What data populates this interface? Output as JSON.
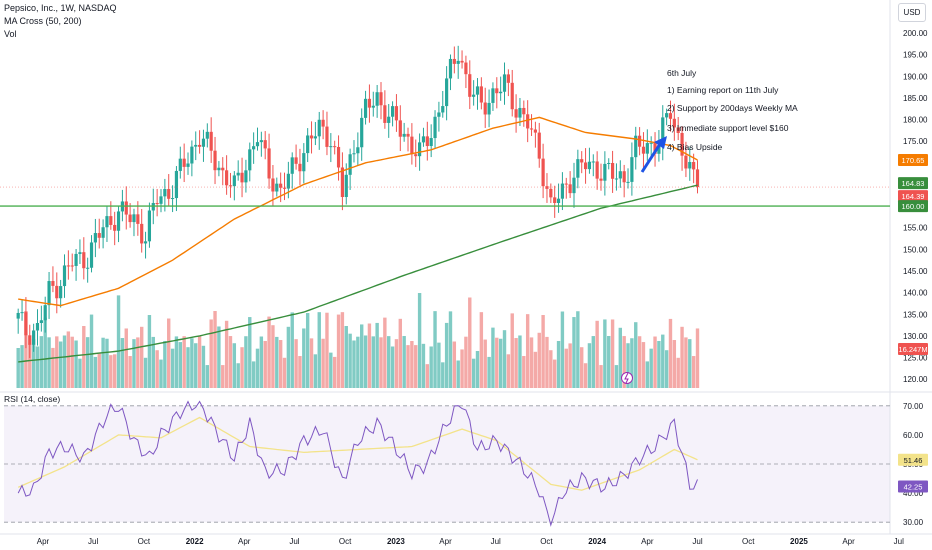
{
  "header": {
    "title": "Pepsico, Inc., 1W, NASDAQ",
    "indicator1": "MA Cross (50, 200)",
    "indicator2": "Vol",
    "currency": "USD"
  },
  "annotations": [
    "6th July",
    "1) Earning report on 11th July",
    "2) Support by 200days Weekly MA",
    "3) Immediate support level $160",
    "4) Bias Upside"
  ],
  "rsi_title": "RSI (14, close)",
  "colors": {
    "up": "#26a69a",
    "down": "#ef5350",
    "ma50": "#f57c00",
    "ma200": "#388e3c",
    "support": "#4caf50",
    "rsi": "#7e57c2",
    "rsi_ma": "#f3e38a",
    "arrow": "#1e53e5"
  },
  "chart_data": [
    {
      "type": "candlestick",
      "title": "Pepsico, Inc., 1W, NASDAQ",
      "x_ticks": [
        "Apr",
        "Jul",
        "Oct",
        "2022",
        "Apr",
        "Jul",
        "Oct",
        "2023",
        "Apr",
        "Jul",
        "Oct",
        "2024",
        "Apr",
        "Jul",
        "Oct",
        "2025",
        "Apr",
        "Jul",
        "Oct"
      ],
      "y_ticks": [
        120,
        125,
        130,
        135,
        140,
        145,
        150,
        155,
        160,
        165,
        170,
        175,
        180,
        185,
        190,
        195,
        200
      ],
      "ylim": [
        117.5,
        203
      ],
      "close_trend": [
        [
          "2021-02-15",
          134
        ],
        [
          "2021-03-01",
          131
        ],
        [
          "2021-03-22",
          131.5
        ],
        [
          "2021-04-12",
          140
        ],
        [
          "2021-05-03",
          143
        ],
        [
          "2021-05-24",
          147
        ],
        [
          "2021-06-21",
          148.5
        ],
        [
          "2021-07-19",
          155
        ],
        [
          "2021-08-16",
          158.5
        ],
        [
          "2021-09-13",
          157
        ],
        [
          "2021-10-04",
          153
        ],
        [
          "2021-10-25",
          162
        ],
        [
          "2021-11-22",
          164
        ],
        [
          "2021-12-13",
          170
        ],
        [
          "2022-01-10",
          176
        ],
        [
          "2022-01-31",
          172.5
        ],
        [
          "2022-02-21",
          167.5
        ],
        [
          "2022-03-14",
          164
        ],
        [
          "2022-04-04",
          170
        ],
        [
          "2022-04-25",
          176
        ],
        [
          "2022-05-16",
          168
        ],
        [
          "2022-06-06",
          163
        ],
        [
          "2022-06-20",
          167
        ],
        [
          "2022-07-18",
          173
        ],
        [
          "2022-08-15",
          178
        ],
        [
          "2022-09-05",
          176
        ],
        [
          "2022-09-26",
          163
        ],
        [
          "2022-10-17",
          174
        ],
        [
          "2022-11-07",
          182
        ],
        [
          "2022-11-28",
          185
        ],
        [
          "2022-12-19",
          181
        ],
        [
          "2023-01-16",
          176.5
        ],
        [
          "2023-02-13",
          172
        ],
        [
          "2023-03-06",
          177
        ],
        [
          "2023-04-03",
          188
        ],
        [
          "2023-04-24",
          196
        ],
        [
          "2023-05-15",
          187
        ],
        [
          "2023-06-05",
          183
        ],
        [
          "2023-06-26",
          186
        ],
        [
          "2023-07-17",
          188
        ],
        [
          "2023-08-07",
          183
        ],
        [
          "2023-08-28",
          179
        ],
        [
          "2023-09-18",
          172
        ],
        [
          "2023-10-09",
          160
        ],
        [
          "2023-10-30",
          163
        ],
        [
          "2023-11-20",
          168
        ],
        [
          "2023-12-11",
          169.5
        ],
        [
          "2024-01-08",
          168.5
        ],
        [
          "2024-01-29",
          167
        ],
        [
          "2024-02-19",
          166.5
        ],
        [
          "2024-03-11",
          173
        ],
        [
          "2024-04-01",
          174
        ],
        [
          "2024-04-22",
          175
        ],
        [
          "2024-05-13",
          182
        ],
        [
          "2024-06-03",
          173
        ],
        [
          "2024-06-24",
          165.5
        ],
        [
          "2024-07-01",
          164.39
        ]
      ],
      "series": [
        {
          "name": "MA Cross 50",
          "values": [
            [
              "2021-02-15",
              138.5
            ],
            [
              "2021-05-03",
              137
            ],
            [
              "2021-08-16",
              141
            ],
            [
              "2021-11-22",
              147.5
            ],
            [
              "2022-03-14",
              157
            ],
            [
              "2022-07-18",
              165
            ],
            [
              "2022-11-07",
              170
            ],
            [
              "2023-03-06",
              173
            ],
            [
              "2023-06-26",
              178
            ],
            [
              "2023-09-18",
              180.5
            ],
            [
              "2023-12-11",
              177
            ],
            [
              "2024-03-11",
              175.5
            ],
            [
              "2024-05-13",
              174
            ],
            [
              "2024-07-01",
              170.65
            ]
          ]
        },
        {
          "name": "MA Cross 200",
          "values": [
            [
              "2021-02-15",
              124
            ],
            [
              "2021-08-16",
              126.5
            ],
            [
              "2022-01-10",
              130
            ],
            [
              "2022-07-18",
              135.5
            ],
            [
              "2023-01-16",
              144
            ],
            [
              "2023-07-17",
              152
            ],
            [
              "2024-01-08",
              159.5
            ],
            [
              "2024-07-01",
              164.83
            ]
          ]
        }
      ],
      "support_level": 160.0,
      "price_labels": {
        "ma50": "170.65",
        "ma200": "164.83",
        "last": "164.39",
        "support": "160.00",
        "volume": "16.247M"
      }
    },
    {
      "type": "line",
      "title": "RSI (14, close)",
      "y_ticks": [
        30.0,
        40.0,
        50.0,
        60.0,
        70.0
      ],
      "ylim": [
        28,
        72
      ],
      "bands": [
        30,
        50,
        70
      ],
      "series": [
        {
          "name": "RSI",
          "values": [
            [
              "2021-02-15",
              40
            ],
            [
              "2021-03-15",
              41
            ],
            [
              "2021-04-12",
              54
            ],
            [
              "2021-05-10",
              56
            ],
            [
              "2021-06-14",
              52
            ],
            [
              "2021-07-26",
              67
            ],
            [
              "2021-08-16",
              70
            ],
            [
              "2021-09-13",
              58
            ],
            [
              "2021-10-11",
              52
            ],
            [
              "2021-11-01",
              60
            ],
            [
              "2021-12-06",
              68
            ],
            [
              "2022-01-10",
              71.5
            ],
            [
              "2022-02-07",
              62
            ],
            [
              "2022-03-14",
              52
            ],
            [
              "2022-04-11",
              64
            ],
            [
              "2022-05-09",
              47
            ],
            [
              "2022-06-13",
              48
            ],
            [
              "2022-07-18",
              58
            ],
            [
              "2022-08-22",
              62
            ],
            [
              "2022-09-26",
              44
            ],
            [
              "2022-10-24",
              58
            ],
            [
              "2022-11-28",
              64
            ],
            [
              "2022-12-26",
              57
            ],
            [
              "2023-01-30",
              47
            ],
            [
              "2023-02-27",
              50
            ],
            [
              "2023-04-03",
              64
            ],
            [
              "2023-05-01",
              71.5
            ],
            [
              "2023-05-29",
              55
            ],
            [
              "2023-07-03",
              58
            ],
            [
              "2023-08-14",
              50
            ],
            [
              "2023-09-18",
              41
            ],
            [
              "2023-10-09",
              29
            ],
            [
              "2023-10-30",
              40
            ],
            [
              "2023-12-04",
              45
            ],
            [
              "2024-01-15",
              42
            ],
            [
              "2024-02-19",
              46
            ],
            [
              "2024-03-18",
              52
            ],
            [
              "2024-04-15",
              56
            ],
            [
              "2024-05-20",
              64
            ],
            [
              "2024-06-17",
              43
            ],
            [
              "2024-07-01",
              42.25
            ]
          ]
        },
        {
          "name": "RSI MA",
          "values": [
            [
              "2021-02-15",
              42
            ],
            [
              "2021-05-10",
              49
            ],
            [
              "2021-08-16",
              60
            ],
            [
              "2021-11-01",
              59
            ],
            [
              "2022-01-10",
              66
            ],
            [
              "2022-04-11",
              56
            ],
            [
              "2022-07-18",
              54
            ],
            [
              "2022-10-24",
              55
            ],
            [
              "2023-01-30",
              56
            ],
            [
              "2023-05-01",
              62
            ],
            [
              "2023-07-03",
              58
            ],
            [
              "2023-10-09",
              43
            ],
            [
              "2023-12-04",
              41
            ],
            [
              "2024-03-18",
              48
            ],
            [
              "2024-05-20",
              55
            ],
            [
              "2024-07-01",
              51.46
            ]
          ]
        }
      ],
      "value_labels": {
        "rsi_ma": "51.46",
        "rsi": "42.25"
      }
    }
  ]
}
